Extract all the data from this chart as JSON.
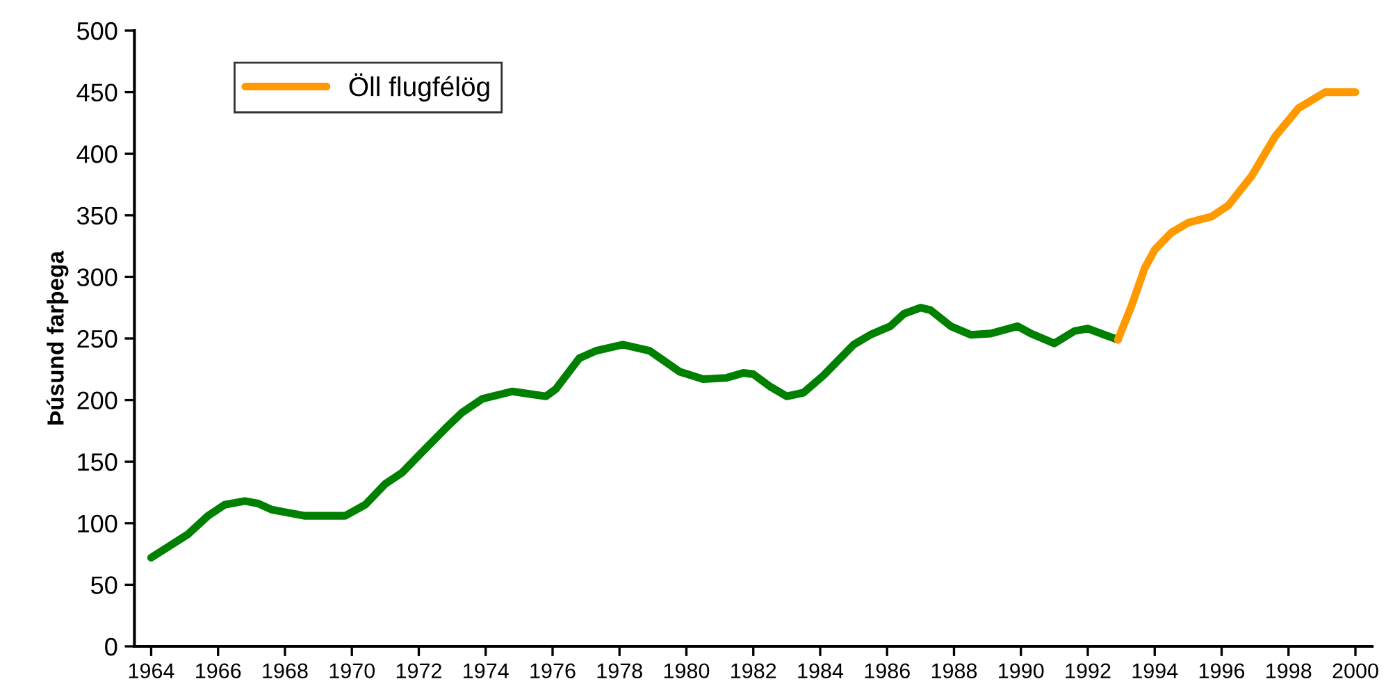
{
  "chart_data": {
    "type": "line",
    "ylabel": "Þúsund farþega",
    "xlim": [
      1963.5,
      2000.5
    ],
    "xticks": [
      1964,
      1966,
      1968,
      1970,
      1972,
      1974,
      1976,
      1978,
      1980,
      1982,
      1984,
      1986,
      1988,
      1990,
      1992,
      1994,
      1996,
      1998,
      2000
    ],
    "ylim": [
      0,
      500
    ],
    "yticks": [
      0,
      50,
      100,
      150,
      200,
      250,
      300,
      350,
      400,
      450,
      500
    ],
    "grid": false,
    "legend": "top left",
    "marker": "none",
    "line_style": "solid",
    "series": [
      {
        "color": "#008000",
        "x": [
          1964.0,
          1965.1,
          1965.7,
          1966.2,
          1966.8,
          1967.2,
          1967.6,
          1968.0,
          1968.6,
          1969.8,
          1970.4,
          1971.0,
          1971.5,
          1972.0,
          1972.8,
          1973.3,
          1973.9,
          1974.8,
          1975.3,
          1975.8,
          1976.1,
          1976.8,
          1977.3,
          1978.1,
          1978.9,
          1979.8,
          1980.5,
          1981.2,
          1981.7,
          1982.0,
          1982.5,
          1983.0,
          1983.5,
          1984.1,
          1985.0,
          1985.5,
          1986.1,
          1986.5,
          1987.0,
          1987.3,
          1987.9,
          1988.5,
          1989.1,
          1989.9,
          1990.3,
          1991.0,
          1991.6,
          1992.0,
          1992.5,
          1992.9
        ],
        "values": [
          72,
          91,
          106,
          115,
          118,
          116,
          111,
          109,
          106,
          106,
          115,
          132,
          141,
          155,
          177,
          190,
          201,
          207,
          205,
          203,
          209,
          234,
          240,
          245,
          240,
          223,
          217,
          218,
          222,
          221,
          211,
          203,
          206,
          220,
          245,
          253,
          260,
          270,
          275,
          273,
          260,
          253,
          254,
          260,
          254,
          246,
          256,
          258,
          253,
          249
        ]
      },
      {
        "name": "Öll flugfélög",
        "color": "#ff9900",
        "x": [
          1992.9,
          1993.3,
          1993.7,
          1994.0,
          1994.5,
          1995.0,
          1995.7,
          1996.2,
          1996.9,
          1997.6,
          1998.3,
          1999.1,
          2000.0
        ],
        "values": [
          249,
          276,
          307,
          322,
          336,
          344,
          349,
          358,
          382,
          414,
          437,
          450,
          450
        ]
      }
    ]
  }
}
